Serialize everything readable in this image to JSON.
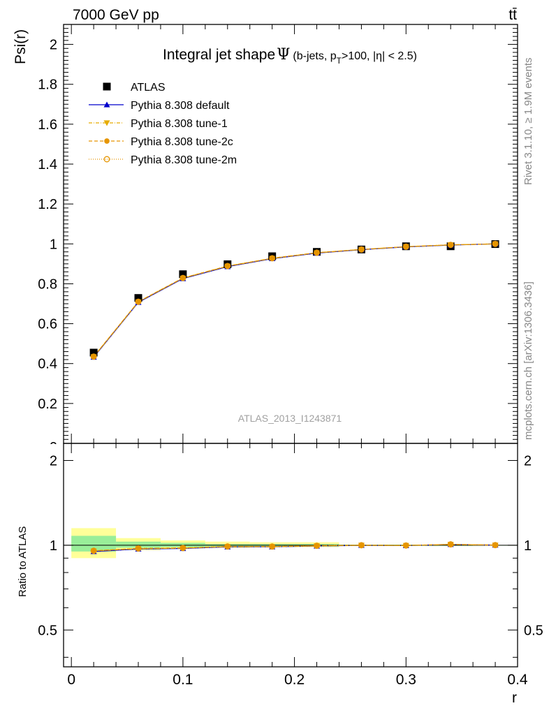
{
  "header": {
    "left": "7000 GeV pp",
    "right": "tt̄"
  },
  "side_labels": {
    "rivet": "Rivet 3.1.10, ≥ 1.9M events",
    "mcplots": "mcplots.cern.ch [arXiv:1306.3436]"
  },
  "watermark": "ATLAS_2013_I1243871",
  "chart_data": {
    "type": "scatter",
    "title": "Integral jet shape",
    "title_symbol": "Ψ",
    "title_cut_open": "(b-jets, p",
    "title_cut_sub": "T",
    "title_cut_close": ">100, |η| < 2.5)",
    "ylabel": "Psi(r)",
    "xlabel": "r",
    "ratio_ylabel": "Ratio to ATLAS",
    "xlim": [
      -0.007,
      0.4
    ],
    "ylim": [
      0,
      2.1
    ],
    "ratio_ylim": [
      0.37,
      2.3
    ],
    "ratio_log": true,
    "x_ticks": [
      "0",
      "0.1",
      "0.2",
      "0.3",
      "0.4"
    ],
    "y_ticks": [
      "0.2",
      "0.4",
      "0.6",
      "0.8",
      "1",
      "1.2",
      "1.4",
      "1.6",
      "1.8",
      "2"
    ],
    "ratio_ticks": [
      "0.5",
      "1",
      "2"
    ],
    "legend_position": "top-left",
    "x": [
      0.02,
      0.06,
      0.1,
      0.14,
      0.18,
      0.22,
      0.26,
      0.3,
      0.34,
      0.38
    ],
    "bins": [
      [
        0.0,
        0.04
      ],
      [
        0.04,
        0.08
      ],
      [
        0.08,
        0.12
      ],
      [
        0.12,
        0.16
      ],
      [
        0.16,
        0.2
      ],
      [
        0.2,
        0.24
      ],
      [
        0.24,
        0.28
      ],
      [
        0.28,
        0.32
      ],
      [
        0.32,
        0.36
      ],
      [
        0.36,
        0.4
      ]
    ],
    "data": {
      "name": "ATLAS",
      "values": [
        0.455,
        0.729,
        0.848,
        0.898,
        0.938,
        0.96,
        0.972,
        0.988,
        0.988,
        0.999
      ],
      "ratio_band_stat": [
        [
          0.95,
          1.08
        ],
        [
          0.98,
          1.03
        ],
        [
          0.985,
          1.02
        ],
        [
          0.99,
          1.01
        ],
        [
          0.99,
          1.01
        ],
        [
          0.99,
          1.01
        ],
        [
          0.995,
          1.005
        ],
        [
          0.995,
          1.005
        ],
        [
          0.995,
          1.005
        ],
        [
          0.998,
          1.002
        ]
      ],
      "ratio_band_total": [
        [
          0.9,
          1.15
        ],
        [
          0.96,
          1.06
        ],
        [
          0.975,
          1.04
        ],
        [
          0.98,
          1.03
        ],
        [
          0.985,
          1.025
        ],
        [
          0.985,
          1.025
        ],
        [
          0.995,
          1.005
        ],
        [
          0.995,
          1.005
        ],
        [
          0.995,
          1.005
        ],
        [
          0.998,
          1.002
        ]
      ]
    },
    "series": [
      {
        "name": "Pythia 8.308 default",
        "color": "#0000cc",
        "marker": "triangle-up",
        "dash": "",
        "values": [
          0.432,
          0.707,
          0.826,
          0.886,
          0.926,
          0.954,
          0.971,
          0.985,
          0.994,
          1.0
        ]
      },
      {
        "name": "Pythia 8.308 tune-1",
        "color": "#e6ac00",
        "marker": "triangle-down",
        "dash": "5 2 1 2",
        "values": [
          0.434,
          0.709,
          0.828,
          0.888,
          0.927,
          0.955,
          0.972,
          0.986,
          0.995,
          1.0
        ]
      },
      {
        "name": "Pythia 8.308 tune-2c",
        "color": "#e69500",
        "marker": "circle-filled",
        "dash": "5 3",
        "values": [
          0.435,
          0.71,
          0.829,
          0.889,
          0.928,
          0.956,
          0.972,
          0.986,
          0.995,
          1.0
        ]
      },
      {
        "name": "Pythia 8.308 tune-2m",
        "color": "#e69500",
        "marker": "circle-open",
        "dash": "1 2",
        "values": [
          0.435,
          0.71,
          0.829,
          0.889,
          0.928,
          0.956,
          0.972,
          0.986,
          0.995,
          1.0
        ]
      }
    ]
  }
}
